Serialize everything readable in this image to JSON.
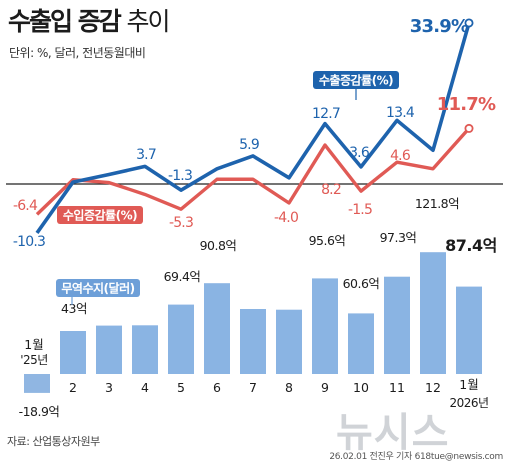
{
  "header": {
    "title_bold": "수출입 증감",
    "title_light": "추이",
    "unit": "단위: %, 달러, 전년동월대비"
  },
  "source": "자료: 산업통상자원부",
  "footer": "26.02.01 전진우 기자 618tue@newsis.com",
  "watermark": "뉴시스",
  "colors": {
    "export": "#1e63ad",
    "import": "#e05a55",
    "bar": "#8ab4e3",
    "neg_bar": "#90b6e2",
    "trade_label": "#6d9fd8",
    "baseline": "#222222"
  },
  "chart_data": [
    {
      "type": "line",
      "x": [
        "1월 '25년",
        "2",
        "3",
        "4",
        "5",
        "6",
        "7",
        "8",
        "9",
        "10",
        "11",
        "12",
        "1월 2026년"
      ],
      "series": [
        {
          "name": "수출증감률(%)",
          "values": [
            -10.3,
            null,
            null,
            3.7,
            -1.3,
            null,
            5.9,
            null,
            12.7,
            3.6,
            13.4,
            null,
            33.9
          ],
          "labels": [
            "-10.3",
            "",
            "",
            "3.7",
            "-1.3",
            "",
            "5.9",
            "",
            "12.7",
            "3.6",
            "13.4",
            "",
            "33.9%"
          ]
        },
        {
          "name": "수입증감률(%)",
          "values": [
            -6.4,
            null,
            null,
            null,
            -5.3,
            null,
            null,
            -4.0,
            8.2,
            -1.5,
            4.6,
            null,
            11.7
          ],
          "labels": [
            "-6.4",
            "",
            "",
            "",
            "-5.3",
            "",
            "",
            "-4.0",
            "8.2",
            "-1.5",
            "4.6",
            "",
            "11.7%"
          ]
        }
      ]
    },
    {
      "type": "bar",
      "name": "무역수지(달러)",
      "categories": [
        "1월 '25년",
        "2",
        "3",
        "4",
        "5",
        "6",
        "7",
        "8",
        "9",
        "10",
        "11",
        "12",
        "1월 2026년"
      ],
      "values": [
        -18.9,
        43,
        null,
        null,
        69.4,
        90.8,
        null,
        null,
        95.6,
        60.6,
        97.3,
        121.8,
        87.4
      ],
      "labels": [
        "-18.9억",
        "43억",
        "",
        "",
        "69.4억",
        "90.8억",
        "",
        "",
        "95.6억",
        "60.6억",
        "97.3억",
        "121.8억",
        "87.4억"
      ]
    }
  ]
}
